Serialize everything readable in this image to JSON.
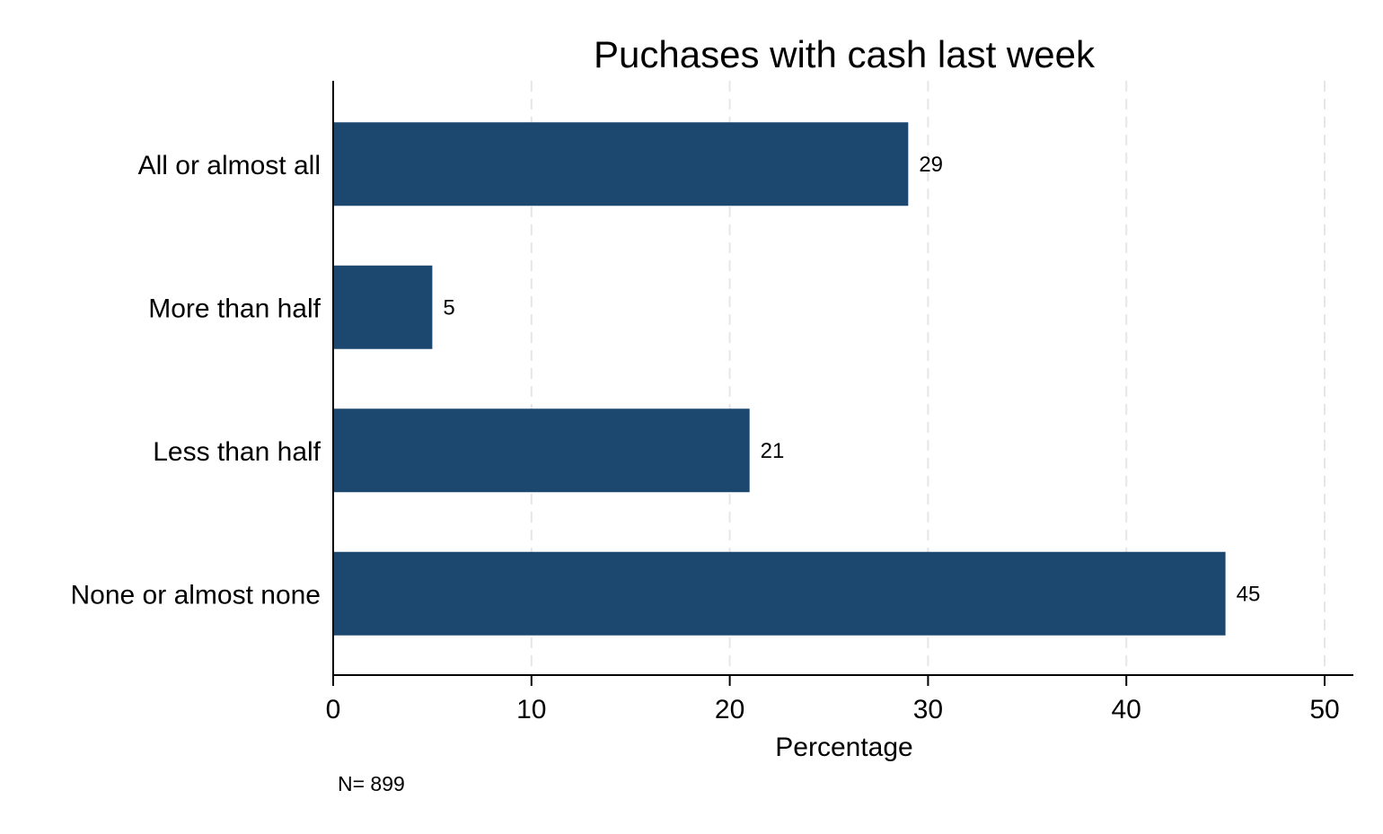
{
  "chart_data": {
    "type": "bar",
    "orientation": "horizontal",
    "title": "Puchases with cash last week",
    "xlabel": "Percentage",
    "ylabel": "",
    "categories": [
      "All or almost all",
      "More than half",
      "Less than half",
      "None or almost none"
    ],
    "values": [
      29,
      5,
      21,
      45
    ],
    "data_labels": [
      "29",
      "5",
      "21",
      "45"
    ],
    "xlim": [
      0,
      50
    ],
    "xticks": [
      0,
      10,
      20,
      30,
      40,
      50
    ],
    "xtick_labels": [
      "0",
      "10",
      "20",
      "30",
      "40",
      "50"
    ],
    "grid": "vertical dashed",
    "legend": "none",
    "bar_color": "#1c4870",
    "note": "N= 899"
  }
}
